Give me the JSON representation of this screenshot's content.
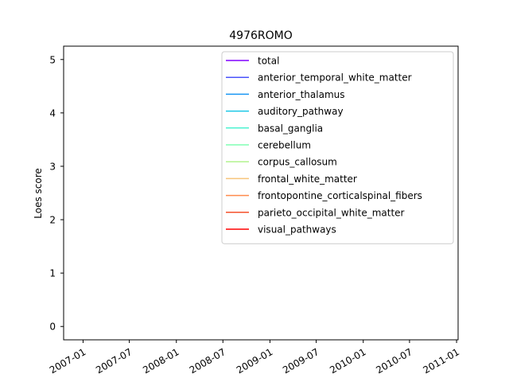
{
  "chart_data": {
    "type": "line",
    "title": "4976ROMO",
    "xlabel": "",
    "ylabel": "Loes score",
    "x_ticks": [
      "2007-01",
      "2007-07",
      "2008-01",
      "2008-07",
      "2009-01",
      "2009-07",
      "2010-01",
      "2010-07",
      "2011-01"
    ],
    "xlim": [
      "2006-10-17",
      "2011-01-07"
    ],
    "y_ticks": [
      0,
      1,
      2,
      3,
      4,
      5
    ],
    "ylim": [
      -0.25,
      5.25
    ],
    "grid": false,
    "legend_position": "top-right",
    "series": [
      {
        "name": "total",
        "color": "#8000ff",
        "values": []
      },
      {
        "name": "anterior_temporal_white_matter",
        "color": "#4a53fb",
        "values": []
      },
      {
        "name": "anterior_thalamus",
        "color": "#1996f3",
        "values": []
      },
      {
        "name": "auditory_pathway",
        "color": "#1cc8e6",
        "values": []
      },
      {
        "name": "basal_ganglia",
        "color": "#4df3d1",
        "values": []
      },
      {
        "name": "cerebellum",
        "color": "#80ffb4",
        "values": []
      },
      {
        "name": "corpus_callosum",
        "color": "#b3f38f",
        "values": []
      },
      {
        "name": "frontal_white_matter",
        "color": "#f7c47a",
        "values": []
      },
      {
        "name": "frontopontine_corticalspinal_fibers",
        "color": "#ff8c4d",
        "values": []
      },
      {
        "name": "parieto_occipital_white_matter",
        "color": "#f5512b",
        "values": []
      },
      {
        "name": "visual_pathways",
        "color": "#ff0000",
        "values": []
      }
    ]
  }
}
